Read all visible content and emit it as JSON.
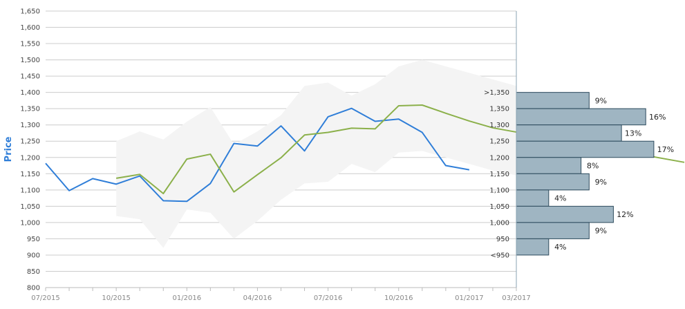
{
  "chart_data": {
    "type": "line",
    "title": "",
    "ylabel": "Price",
    "xlabel": "",
    "ylim": [
      800,
      1650
    ],
    "y_step": 50,
    "x_ticks": [
      "07/2015",
      "10/2015",
      "01/2016",
      "04/2016",
      "07/2016",
      "10/2016",
      "01/2017",
      "03/2017"
    ],
    "series": [
      {
        "name": "",
        "color": "#2f7ed8",
        "x": [
          "07/2015",
          "08/2015",
          "09/2015",
          "10/2015",
          "11/2015",
          "12/2015",
          "01/2016",
          "02/2016",
          "03/2016",
          "04/2016",
          "05/2016",
          "06/2016",
          "07/2016",
          "08/2016",
          "09/2016",
          "10/2016",
          "11/2016",
          "12/2016",
          "01/2017"
        ],
        "values": [
          1182,
          1098,
          1135,
          1118,
          1143,
          1067,
          1065,
          1120,
          1243,
          1235,
          1297,
          1220,
          1325,
          1351,
          1311,
          1318,
          1277,
          1175,
          1162
        ]
      },
      {
        "name": "",
        "color": "#8bb04a",
        "x": [
          "10/2015",
          "11/2015",
          "12/2015",
          "01/2016",
          "02/2016",
          "03/2016",
          "04/2016",
          "05/2016",
          "06/2016",
          "07/2016",
          "08/2016",
          "09/2016",
          "10/2016",
          "11/2016",
          "12/2016",
          "01/2017",
          "02/2017",
          "03/2017"
        ],
        "values": [
          1136,
          1148,
          1089,
          1195,
          1210,
          1094,
          1147,
          1199,
          1269,
          1277,
          1290,
          1288,
          1359,
          1361,
          1336,
          1312,
          1291,
          1278
        ]
      }
    ],
    "band": {
      "color": "#f4f4f4",
      "x": [
        "10/2015",
        "11/2015",
        "12/2015",
        "01/2016",
        "02/2016",
        "03/2016",
        "04/2016",
        "05/2016",
        "06/2016",
        "07/2016",
        "08/2016",
        "09/2016",
        "10/2016",
        "11/2016",
        "12/2016",
        "01/2017",
        "02/2017",
        "03/2017"
      ],
      "low": [
        1020,
        1010,
        922,
        1040,
        1030,
        950,
        1005,
        1070,
        1120,
        1125,
        1180,
        1155,
        1215,
        1220,
        1200,
        1180,
        1160,
        1145
      ],
      "high": [
        1250,
        1280,
        1255,
        1310,
        1355,
        1240,
        1280,
        1330,
        1420,
        1430,
        1390,
        1425,
        1480,
        1500,
        1480,
        1460,
        1440,
        1420
      ]
    },
    "last_segment": {
      "color": "#8bb04a",
      "to_value": 1185
    },
    "histogram": {
      "color": "#9fb5c2",
      "buckets": [
        {
          "label": ">1,350",
          "pct": 9,
          "pct_label": "9%"
        },
        {
          "label": "1,350",
          "pct": 16,
          "pct_label": "16%"
        },
        {
          "label": "1,300",
          "pct": 13,
          "pct_label": "13%"
        },
        {
          "label": "1,250",
          "pct": 17,
          "pct_label": "17%"
        },
        {
          "label": "1,200",
          "pct": 8,
          "pct_label": "8%"
        },
        {
          "label": "1,150",
          "pct": 9,
          "pct_label": "9%"
        },
        {
          "label": "1,100",
          "pct": 4,
          "pct_label": "4%"
        },
        {
          "label": "1,050",
          "pct": 12,
          "pct_label": "12%"
        },
        {
          "label": "1,000",
          "pct": 9,
          "pct_label": "9%"
        },
        {
          "label": "950",
          "pct": 4,
          "pct_label": "4%"
        },
        {
          "label": "<950",
          "pct": 0,
          "pct_label": ""
        }
      ]
    }
  }
}
